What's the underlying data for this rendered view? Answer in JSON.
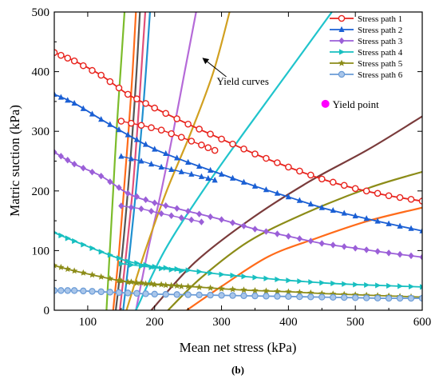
{
  "caption": "(b)",
  "chart_data": {
    "type": "line",
    "xlabel": "Mean net stress (kPa)",
    "ylabel": "Matric suction (kPa)",
    "xlim": [
      50,
      600
    ],
    "ylim": [
      0,
      500
    ],
    "xticks": [
      100,
      200,
      300,
      400,
      500,
      600
    ],
    "yticks": [
      0,
      100,
      200,
      300,
      400,
      500
    ],
    "legend_position": "top-right",
    "series": [
      {
        "name": "Stress path 1",
        "color": "#e8231d",
        "marker": "circle",
        "points": [
          [
            50,
            432
          ],
          [
            80,
            418
          ],
          [
            120,
            394
          ],
          [
            160,
            362
          ],
          [
            200,
            339
          ],
          [
            250,
            312
          ],
          [
            300,
            287
          ],
          [
            350,
            262
          ],
          [
            400,
            240
          ],
          [
            450,
            220
          ],
          [
            500,
            204
          ],
          [
            550,
            192
          ],
          [
            600,
            183
          ]
        ],
        "points_b": [
          [
            150,
            317
          ],
          [
            180,
            310
          ],
          [
            210,
            302
          ],
          [
            240,
            290
          ],
          [
            270,
            277
          ],
          [
            290,
            268
          ]
        ]
      },
      {
        "name": "Stress path 2",
        "color": "#1a5fd4",
        "marker": "triangle-up",
        "points": [
          [
            50,
            362
          ],
          [
            80,
            347
          ],
          [
            120,
            320
          ],
          [
            160,
            294
          ],
          [
            200,
            270
          ],
          [
            250,
            248
          ],
          [
            300,
            228
          ],
          [
            350,
            208
          ],
          [
            400,
            190
          ],
          [
            450,
            172
          ],
          [
            500,
            158
          ],
          [
            550,
            145
          ],
          [
            600,
            133
          ]
        ],
        "points_b": [
          [
            150,
            258
          ],
          [
            180,
            250
          ],
          [
            210,
            240
          ],
          [
            240,
            232
          ],
          [
            270,
            224
          ],
          [
            290,
            218
          ]
        ]
      },
      {
        "name": "Stress path 3",
        "color": "#9b5fd8",
        "marker": "diamond",
        "points": [
          [
            50,
            265
          ],
          [
            80,
            245
          ],
          [
            120,
            225
          ],
          [
            160,
            196
          ],
          [
            200,
            180
          ],
          [
            250,
            166
          ],
          [
            300,
            152
          ],
          [
            350,
            136
          ],
          [
            400,
            124
          ],
          [
            450,
            112
          ],
          [
            500,
            104
          ],
          [
            550,
            96
          ],
          [
            600,
            89
          ]
        ],
        "points_b": [
          [
            150,
            175
          ],
          [
            180,
            170
          ],
          [
            210,
            162
          ],
          [
            240,
            155
          ],
          [
            270,
            148
          ]
        ]
      },
      {
        "name": "Stress path 4",
        "color": "#17bfc0",
        "marker": "triangle-right",
        "points": [
          [
            50,
            130
          ],
          [
            80,
            116
          ],
          [
            120,
            98
          ],
          [
            160,
            82
          ],
          [
            200,
            73
          ],
          [
            250,
            67
          ],
          [
            300,
            60
          ],
          [
            350,
            55
          ],
          [
            400,
            50
          ],
          [
            450,
            46
          ],
          [
            500,
            43
          ],
          [
            550,
            41
          ],
          [
            600,
            39
          ]
        ],
        "points_b": [
          [
            150,
            78
          ],
          [
            180,
            74
          ],
          [
            210,
            70
          ],
          [
            240,
            66
          ]
        ]
      },
      {
        "name": "Stress path 5",
        "color": "#8c8c18",
        "marker": "star",
        "points": [
          [
            50,
            75
          ],
          [
            80,
            66
          ],
          [
            120,
            56
          ],
          [
            160,
            47
          ],
          [
            200,
            43
          ],
          [
            250,
            40
          ],
          [
            300,
            36
          ],
          [
            350,
            33
          ],
          [
            400,
            31
          ],
          [
            450,
            28
          ],
          [
            500,
            26
          ],
          [
            550,
            24
          ],
          [
            600,
            22
          ]
        ],
        "points_b": [
          [
            150,
            49
          ],
          [
            180,
            46
          ],
          [
            210,
            43
          ],
          [
            240,
            40
          ]
        ]
      },
      {
        "name": "Stress path 6",
        "color": "#6a9bd6",
        "marker": "circle-open",
        "points": [
          [
            50,
            33
          ],
          [
            80,
            33
          ],
          [
            120,
            31
          ],
          [
            160,
            29
          ],
          [
            200,
            27
          ],
          [
            250,
            26
          ],
          [
            300,
            25
          ],
          [
            350,
            24
          ],
          [
            400,
            23
          ],
          [
            450,
            22
          ],
          [
            500,
            21
          ],
          [
            550,
            20
          ],
          [
            600,
            20
          ]
        ],
        "points_b": []
      }
    ],
    "yield_curves": [
      {
        "color": "#7cbc2b",
        "points": [
          [
            128,
            0
          ],
          [
            133,
            100
          ],
          [
            138,
            200
          ],
          [
            143,
            300
          ],
          [
            149,
            400
          ],
          [
            155,
            500
          ]
        ]
      },
      {
        "color": "#ff6b1a",
        "points": [
          [
            138,
            0
          ],
          [
            147,
            100
          ],
          [
            154,
            200
          ],
          [
            161,
            300
          ],
          [
            167,
            400
          ],
          [
            172,
            500
          ]
        ]
      },
      {
        "color": "#555555",
        "points": [
          [
            142,
            0
          ],
          [
            152,
            100
          ],
          [
            160,
            200
          ],
          [
            167,
            300
          ],
          [
            173,
            400
          ],
          [
            178,
            500
          ]
        ]
      },
      {
        "color": "#e0507a",
        "points": [
          [
            148,
            0
          ],
          [
            158,
            100
          ],
          [
            167,
            200
          ],
          [
            174,
            300
          ],
          [
            180,
            400
          ],
          [
            186,
            500
          ]
        ]
      },
      {
        "color": "#2090d0",
        "points": [
          [
            153,
            0
          ],
          [
            163,
            100
          ],
          [
            172,
            200
          ],
          [
            180,
            300
          ],
          [
            187,
            400
          ],
          [
            193,
            500
          ]
        ]
      },
      {
        "color": "#b56ad8",
        "points": [
          [
            172,
            0
          ],
          [
            190,
            100
          ],
          [
            210,
            200
          ],
          [
            228,
            300
          ],
          [
            245,
            400
          ],
          [
            262,
            500
          ]
        ]
      },
      {
        "color": "#d1a020",
        "points": [
          [
            158,
            0
          ],
          [
            186,
            100
          ],
          [
            218,
            200
          ],
          [
            255,
            300
          ],
          [
            288,
            400
          ],
          [
            312,
            500
          ]
        ]
      },
      {
        "color": "#20c4cc",
        "points": [
          [
            172,
            0
          ],
          [
            215,
            100
          ],
          [
            272,
            200
          ],
          [
            335,
            300
          ],
          [
            400,
            400
          ],
          [
            465,
            500
          ]
        ]
      },
      {
        "color": "#7a3b3b",
        "points": [
          [
            195,
            0
          ],
          [
            260,
            80
          ],
          [
            340,
            150
          ],
          [
            430,
            215
          ],
          [
            520,
            270
          ],
          [
            600,
            325
          ]
        ]
      },
      {
        "color": "#8c8c18",
        "points": [
          [
            220,
            0
          ],
          [
            270,
            55
          ],
          [
            340,
            115
          ],
          [
            420,
            160
          ],
          [
            520,
            205
          ],
          [
            600,
            232
          ]
        ]
      },
      {
        "color": "#ff6b1a",
        "points": [
          [
            248,
            0
          ],
          [
            300,
            40
          ],
          [
            370,
            90
          ],
          [
            440,
            120
          ],
          [
            520,
            150
          ],
          [
            600,
            172
          ]
        ]
      }
    ],
    "annotations": [
      {
        "text": "Yield curves",
        "x": 300,
        "y": 370,
        "arrow_to": [
          275,
          420
        ]
      },
      {
        "text": "Yield point",
        "x": 460,
        "y": 346,
        "marker": "circle",
        "color": "#ff00ff"
      }
    ]
  }
}
